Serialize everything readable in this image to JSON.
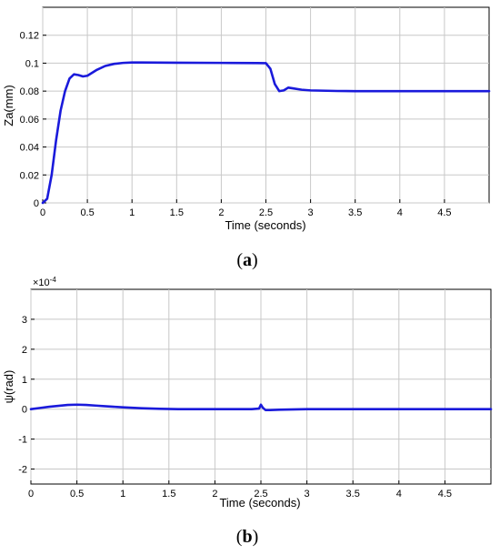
{
  "chart_data": [
    {
      "type": "line",
      "caption": "(a)",
      "caption_letter": "a",
      "title": "",
      "xlabel": "Time (seconds)",
      "ylabel": "Za(mm)",
      "xlim": [
        0,
        5
      ],
      "ylim": [
        0,
        0.14
      ],
      "x_ticks": [
        0,
        0.5,
        1,
        1.5,
        2,
        2.5,
        3,
        3.5,
        4,
        4.5
      ],
      "x_tick_labels": [
        "0",
        "0.5",
        "1",
        "1.5",
        "2",
        "2.5",
        "3",
        "3.5",
        "4",
        "4.5"
      ],
      "y_ticks": [
        0,
        0.02,
        0.04,
        0.06,
        0.08,
        0.1,
        0.12
      ],
      "y_tick_labels": [
        "0",
        "0.02",
        "0.04",
        "0.06",
        "0.08",
        "0.1",
        "0.12"
      ],
      "grid": true,
      "line_color": "#1a1adb",
      "series": [
        {
          "x": [
            0,
            0.05,
            0.1,
            0.15,
            0.2,
            0.25,
            0.3,
            0.35,
            0.4,
            0.45,
            0.5,
            0.6,
            0.7,
            0.8,
            0.9,
            1.0,
            1.1,
            1.5,
            2.0,
            2.4,
            2.5,
            2.55,
            2.6,
            2.65,
            2.7,
            2.75,
            2.8,
            2.9,
            3.0,
            3.3,
            3.5,
            4.0,
            4.5,
            5.0
          ],
          "y": [
            0,
            0.003,
            0.02,
            0.045,
            0.066,
            0.08,
            0.089,
            0.092,
            0.0915,
            0.0905,
            0.091,
            0.095,
            0.098,
            0.0995,
            0.1002,
            0.1005,
            0.1005,
            0.1003,
            0.1002,
            0.1001,
            0.1,
            0.096,
            0.085,
            0.08,
            0.0805,
            0.0825,
            0.082,
            0.081,
            0.0805,
            0.0801,
            0.08,
            0.08,
            0.08,
            0.08
          ]
        }
      ]
    },
    {
      "type": "line",
      "caption": "(b)",
      "caption_letter": "b",
      "title": "",
      "xlabel": "Time (seconds)",
      "ylabel": "ψ(rad)",
      "y_exponent_label": "×10",
      "y_exponent_power": "-4",
      "xlim": [
        0,
        5
      ],
      "ylim": [
        -2.5,
        4
      ],
      "x_ticks": [
        0,
        0.5,
        1,
        1.5,
        2,
        2.5,
        3,
        3.5,
        4,
        4.5
      ],
      "x_tick_labels": [
        "0",
        "0.5",
        "1",
        "1.5",
        "2",
        "2.5",
        "3",
        "3.5",
        "4",
        "4.5"
      ],
      "y_ticks": [
        -2,
        -1,
        0,
        1,
        2,
        3
      ],
      "y_tick_labels": [
        "-2",
        "-1",
        "0",
        "1",
        "2",
        "3"
      ],
      "grid": true,
      "line_color": "#1a1adb",
      "series": [
        {
          "x": [
            0,
            0.1,
            0.2,
            0.3,
            0.4,
            0.5,
            0.6,
            0.7,
            0.8,
            0.9,
            1.0,
            1.2,
            1.4,
            1.6,
            2.0,
            2.4,
            2.48,
            2.5,
            2.52,
            2.55,
            2.6,
            2.7,
            3.0,
            3.5,
            4.0,
            4.5,
            5.0
          ],
          "y": [
            0,
            0.04,
            0.08,
            0.11,
            0.14,
            0.15,
            0.14,
            0.12,
            0.1,
            0.08,
            0.06,
            0.03,
            0.01,
            0,
            0,
            0,
            0.02,
            0.15,
            0.05,
            -0.03,
            -0.03,
            -0.02,
            0,
            0,
            0,
            0,
            0
          ]
        }
      ]
    }
  ]
}
